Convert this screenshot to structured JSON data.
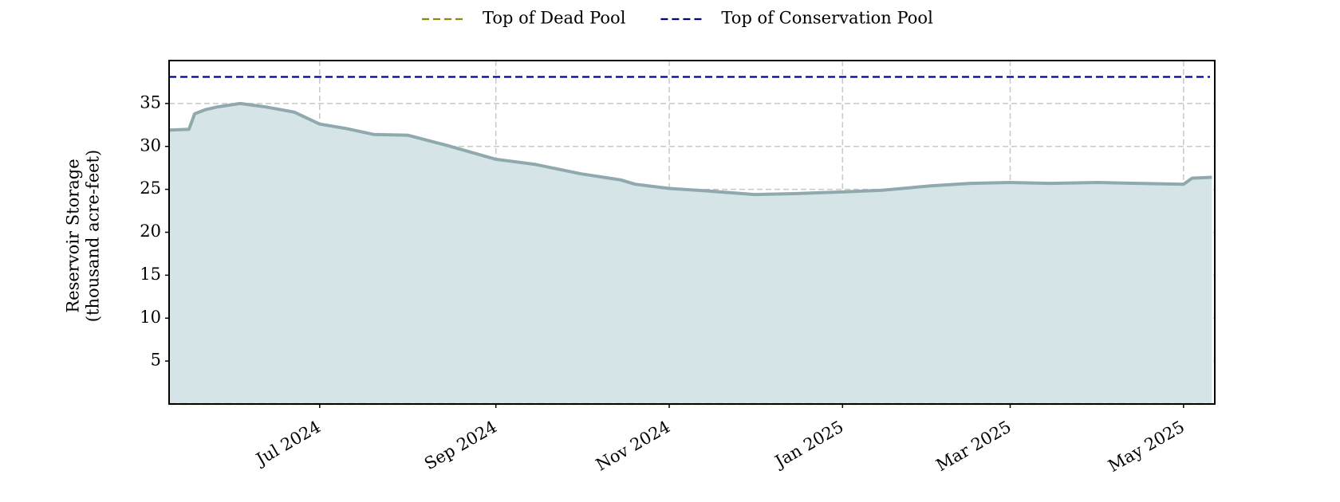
{
  "chart_data": {
    "type": "area",
    "y_label": "Reservoir Storage\n(thousand acre-feet)",
    "x": [
      "2024-05-09",
      "2024-05-16",
      "2024-05-18",
      "2024-05-22",
      "2024-05-26",
      "2024-06-03",
      "2024-06-12",
      "2024-06-22",
      "2024-07-01",
      "2024-07-10",
      "2024-07-20",
      "2024-08-01",
      "2024-08-15",
      "2024-09-01",
      "2024-09-15",
      "2024-10-01",
      "2024-10-15",
      "2024-10-20",
      "2024-11-01",
      "2024-11-15",
      "2024-12-01",
      "2024-12-15",
      "2025-01-01",
      "2025-01-15",
      "2025-02-01",
      "2025-02-15",
      "2025-03-01",
      "2025-03-15",
      "2025-04-01",
      "2025-04-15",
      "2025-05-01",
      "2025-05-04",
      "2025-05-11"
    ],
    "values": [
      31.9,
      32.0,
      33.8,
      34.3,
      34.6,
      35.0,
      34.6,
      34.0,
      32.6,
      32.1,
      31.4,
      31.3,
      30.1,
      28.5,
      27.9,
      26.8,
      26.1,
      25.6,
      25.1,
      24.8,
      24.4,
      24.5,
      24.7,
      24.9,
      25.4,
      25.7,
      25.8,
      25.7,
      25.8,
      25.7,
      25.6,
      26.3,
      26.4
    ],
    "color": "#8fa9ae",
    "fill_color": "#d5e5e7",
    "reference_lines": [
      {
        "name": "Top of Dead Pool",
        "value": 0,
        "color": "#8b8b00"
      },
      {
        "name": "Top of Conservation Pool",
        "value": 38.1,
        "color": "#00008b"
      }
    ],
    "xlim": [
      "2024-05-09",
      "2025-05-12"
    ],
    "xticks": [
      {
        "value": "2024-07-01",
        "label": "Jul 2024"
      },
      {
        "value": "2024-09-01",
        "label": "Sep 2024"
      },
      {
        "value": "2024-11-01",
        "label": "Nov 2024"
      },
      {
        "value": "2025-01-01",
        "label": "Jan 2025"
      },
      {
        "value": "2025-03-01",
        "label": "Mar 2025"
      },
      {
        "value": "2025-05-01",
        "label": "May 2025"
      }
    ],
    "ylim": [
      0,
      40
    ],
    "yticks": [
      5,
      10,
      15,
      20,
      25,
      30,
      35
    ],
    "grid": true
  }
}
